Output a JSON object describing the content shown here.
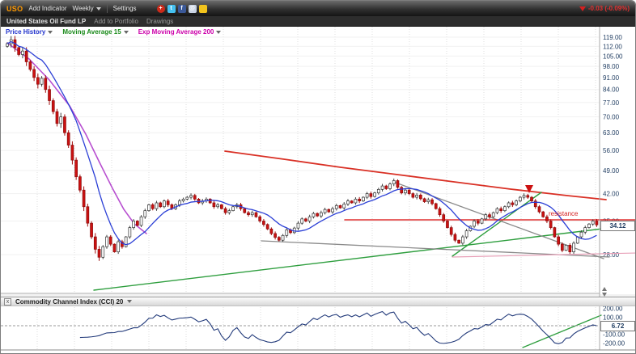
{
  "toolbar": {
    "ticker": "USO",
    "add_indicator": "Add Indicator",
    "timeframe": "Weekly",
    "settings": "Settings",
    "change": "-0.03 (-0.09%)",
    "change_color": "#d42020",
    "ticker_color": "#ff9900",
    "icons": [
      {
        "name": "share-icon",
        "color": "#cc2a1a",
        "glyph": "+",
        "round": true
      },
      {
        "name": "twitter-icon",
        "color": "#45c1f0",
        "glyph": "t",
        "round": false
      },
      {
        "name": "facebook-icon",
        "color": "#3b5998",
        "glyph": "f",
        "round": false
      },
      {
        "name": "mail-icon",
        "color": "#c9d4e4",
        "glyph": "@",
        "round": false
      },
      {
        "name": "chat-icon",
        "color": "#f2c41d",
        "glyph": "",
        "round": false
      }
    ]
  },
  "subbar": {
    "name": "United States Oil Fund LP",
    "add_to_portfolio": "Add to Portfolio",
    "drawings": "Drawings"
  },
  "legend": {
    "items": [
      {
        "label": "Price History",
        "color": "#2233cc"
      },
      {
        "label": "Moving Average 15",
        "color": "#1a8a1a"
      },
      {
        "label": "Exp Moving Average 200",
        "color": "#cc00aa"
      }
    ]
  },
  "price_axis": {
    "labels": [
      "119.00",
      "112.00",
      "105.00",
      "98.00",
      "91.00",
      "84.00",
      "77.00",
      "70.00",
      "63.00",
      "56.00",
      "49.00",
      "42.00",
      "35.00",
      "28.00"
    ],
    "values": [
      119,
      112,
      105,
      98,
      91,
      84,
      77,
      70,
      63,
      56,
      49,
      42,
      35,
      28
    ]
  },
  "price_marker": {
    "value": "34.12",
    "price": 34.12
  },
  "annotations": {
    "resistance_label": "resistance"
  },
  "cci_panel": {
    "close_label": "x",
    "title": "Commodity Channel Index (CCI) 20",
    "axis_labels": [
      "200.00",
      "100.00",
      "0.00",
      "-100.00",
      "-200.00"
    ],
    "axis_values": [
      200,
      100,
      0,
      -100,
      -200
    ],
    "marker": {
      "value": "6.72",
      "v": 6.72
    }
  },
  "chart_data": {
    "type": "candlestick",
    "symbol": "USO",
    "title": "United States Oil Fund LP",
    "timeframe": "Weekly",
    "scale": "log",
    "ylim": [
      22,
      121
    ],
    "last_price": 34.12,
    "first_open": 112,
    "closes": [
      114,
      117,
      111,
      106,
      108.5,
      101,
      96,
      91,
      87,
      90.5,
      84,
      78,
      72.5,
      67,
      70,
      63,
      58,
      52.5,
      47,
      43,
      38.5,
      34.5,
      31.5,
      29,
      27.5,
      29.5,
      31.5,
      30,
      28.5,
      30.5,
      29.5,
      31.5,
      33.5,
      35,
      34,
      36,
      37.5,
      39,
      38,
      39.5,
      38.5,
      40,
      39,
      38,
      39,
      40,
      40.5,
      41,
      41.5,
      40.5,
      39.5,
      40,
      40.5,
      39.5,
      38.5,
      39,
      38,
      37,
      37.5,
      38.5,
      39,
      38,
      37,
      36.5,
      37,
      36,
      35,
      34.2,
      33.2,
      32.2,
      31.4,
      30.8,
      31.8,
      33,
      32.4,
      33.4,
      34.5,
      35.5,
      35,
      36,
      36.8,
      36.2,
      37,
      37.8,
      37.2,
      38,
      38.8,
      38.2,
      39.2,
      40,
      39.5,
      40.5,
      40,
      41,
      42,
      41.2,
      42.2,
      43.2,
      44.2,
      43.4,
      44.8,
      45.8,
      43.8,
      42.2,
      43,
      42,
      41,
      41.6,
      40.6,
      39.8,
      40.3,
      39.3,
      38,
      36.5,
      35,
      33.5,
      32,
      30.8,
      30.2,
      31.5,
      32.8,
      33.8,
      35,
      34.5,
      35.5,
      36.5,
      36,
      37,
      38,
      37.5,
      38.5,
      39.5,
      39,
      40,
      41,
      41.5,
      41,
      40,
      38.5,
      37.2,
      36,
      35,
      33.5,
      31.5,
      30,
      28.8,
      29.8,
      28.5,
      30.2,
      31.5,
      32.5,
      33.5,
      34.3,
      35,
      34.12
    ],
    "indicators": [
      {
        "name": "Moving Average 15",
        "color": "#2b3fd6"
      },
      {
        "name": "Exp Moving Average 200",
        "color": "#b84fd0"
      },
      {
        "name": "Commodity Channel Index (CCI) 20",
        "color": "#223a7a"
      }
    ],
    "trendlines": [
      {
        "name": "ema200-early",
        "color": "#b84fd0",
        "width": 1.6,
        "points": [
          [
            8,
            20
          ],
          [
            35,
            40
          ],
          [
            60,
            66
          ],
          [
            85,
            98
          ],
          [
            105,
            133
          ],
          [
            122,
            168
          ],
          [
            138,
            200
          ],
          [
            152,
            226
          ],
          [
            165,
            244
          ],
          [
            180,
            256
          ]
        ]
      },
      {
        "name": "ema200-late",
        "color": "#d93025",
        "width": 1.8,
        "points": [
          [
            277,
            154
          ],
          [
            350,
            164
          ],
          [
            420,
            174
          ],
          [
            490,
            183
          ],
          [
            560,
            192
          ],
          [
            630,
            201
          ],
          [
            700,
            209
          ],
          [
            748,
            214
          ]
        ]
      },
      {
        "name": "uptrend-long",
        "color": "#2e9e3e",
        "width": 1.4,
        "points": [
          [
            115,
            326
          ],
          [
            752,
            249
          ]
        ]
      },
      {
        "name": "uptrend-steep",
        "color": "#2e9e3e",
        "width": 1.4,
        "points": [
          [
            558,
            284
          ],
          [
            668,
            205
          ]
        ]
      },
      {
        "name": "downtrend-gray",
        "color": "#8a8a8a",
        "width": 1.3,
        "points": [
          [
            488,
            193
          ],
          [
            745,
            287
          ]
        ]
      },
      {
        "name": "base-gray",
        "color": "#8a8a8a",
        "width": 1.3,
        "points": [
          [
            322,
            265
          ],
          [
            752,
            285
          ]
        ]
      },
      {
        "name": "resistance-line",
        "color": "#e03030",
        "width": 1.5,
        "points": [
          [
            425,
            239
          ],
          [
            786,
            239
          ]
        ]
      },
      {
        "name": "lower-pink",
        "color": "#e8a0b8",
        "width": 1.2,
        "points": [
          [
            558,
            285
          ],
          [
            786,
            280
          ]
        ]
      },
      {
        "name": "cci-uptrend",
        "color": "#2e9e3e",
        "width": 1.3,
        "points": [
          [
            645,
            397
          ],
          [
            742,
            357
          ]
        ]
      }
    ],
    "arrow_marker": {
      "color": "#cc1111",
      "points": [
        [
          648,
          196
        ],
        [
          658,
          196
        ],
        [
          653,
          206
        ]
      ]
    }
  }
}
